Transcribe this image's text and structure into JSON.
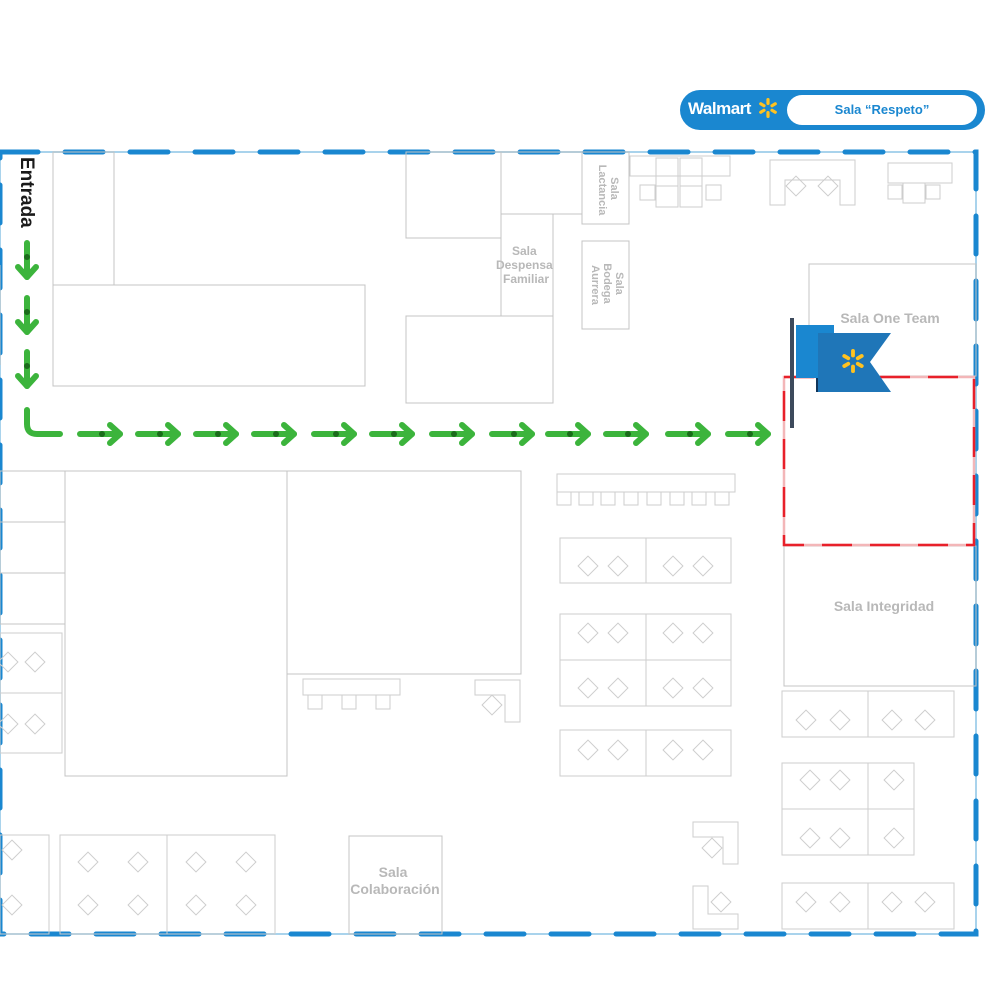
{
  "header": {
    "brand": "Walmart",
    "room": "Sala “Respeto”",
    "logo_icon": "walmart-spark-icon"
  },
  "entrance": {
    "label": "Entrada"
  },
  "rooms": {
    "lactancia": [
      "Sala",
      "Lactancia"
    ],
    "despensa": [
      "Sala",
      "Despensa",
      "Familiar"
    ],
    "bodega": [
      "Sala",
      "Bodega",
      "Aurrera"
    ],
    "one_team": "Sala One Team",
    "integridad": "Sala Integridad",
    "colaboracion": [
      "Sala",
      "Colaboración"
    ]
  },
  "markers": {
    "destination_flag": "walmart-flag-icon"
  },
  "colors": {
    "brand_blue": "#1a87d0",
    "spark_yellow": "#ffc220",
    "route_green": "#3cb43c",
    "highlight_red": "#e8202a",
    "wall_line": "#bdbdbd"
  }
}
